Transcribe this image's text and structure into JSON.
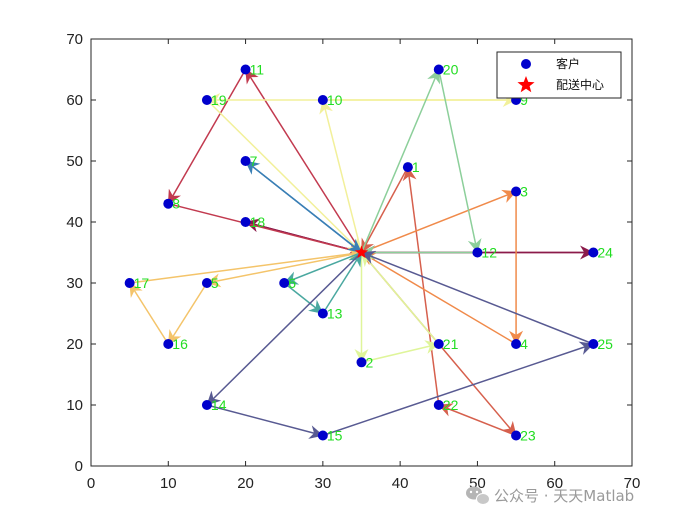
{
  "chart_data": {
    "type": "scatter",
    "title": "",
    "xlabel": "",
    "ylabel": "",
    "xlim": [
      0,
      70
    ],
    "ylim": [
      0,
      70
    ],
    "xticks": [
      0,
      10,
      20,
      30,
      40,
      50,
      60,
      70
    ],
    "yticks": [
      0,
      10,
      20,
      30,
      40,
      50,
      60,
      70
    ],
    "grid": false,
    "legend_position": "top-right",
    "legend": [
      {
        "label": "客户",
        "marker": "circle",
        "color": "#0000cc"
      },
      {
        "label": "配送中心",
        "marker": "star",
        "color": "#ff0000"
      }
    ],
    "depot": {
      "x": 35,
      "y": 35
    },
    "customers": [
      {
        "id": "1",
        "x": 41,
        "y": 49
      },
      {
        "id": "2",
        "x": 35,
        "y": 17
      },
      {
        "id": "3",
        "x": 55,
        "y": 45
      },
      {
        "id": "4",
        "x": 55,
        "y": 20
      },
      {
        "id": "5",
        "x": 15,
        "y": 30
      },
      {
        "id": "6",
        "x": 25,
        "y": 30
      },
      {
        "id": "7",
        "x": 20,
        "y": 50
      },
      {
        "id": "8",
        "x": 10,
        "y": 43
      },
      {
        "id": "9",
        "x": 55,
        "y": 60
      },
      {
        "id": "10",
        "x": 30,
        "y": 60
      },
      {
        "id": "11",
        "x": 20,
        "y": 65
      },
      {
        "id": "12",
        "x": 50,
        "y": 35
      },
      {
        "id": "13",
        "x": 30,
        "y": 25
      },
      {
        "id": "14",
        "x": 15,
        "y": 10
      },
      {
        "id": "15",
        "x": 30,
        "y": 5
      },
      {
        "id": "16",
        "x": 10,
        "y": 20
      },
      {
        "id": "17",
        "x": 5,
        "y": 30
      },
      {
        "id": "18",
        "x": 20,
        "y": 40
      },
      {
        "id": "19",
        "x": 15,
        "y": 60
      },
      {
        "id": "20",
        "x": 45,
        "y": 65
      },
      {
        "id": "21",
        "x": 45,
        "y": 20
      },
      {
        "id": "22",
        "x": 45,
        "y": 10
      },
      {
        "id": "23",
        "x": 55,
        "y": 5
      },
      {
        "id": "24",
        "x": 65,
        "y": 35
      },
      {
        "id": "25",
        "x": 65,
        "y": 20
      }
    ],
    "routes": [
      {
        "color": "#8b1a4a",
        "path": [
          [
            35,
            35
          ],
          [
            20,
            40
          ],
          [
            35,
            35
          ]
        ]
      },
      {
        "color": "#8b1a4a",
        "path": [
          [
            35,
            35
          ],
          [
            65,
            35
          ],
          [
            35,
            35
          ]
        ]
      },
      {
        "color": "#c23a4f",
        "path": [
          [
            35,
            35
          ],
          [
            20,
            65
          ],
          [
            10,
            43
          ],
          [
            35,
            35
          ]
        ]
      },
      {
        "color": "#d6604d",
        "path": [
          [
            35,
            35
          ],
          [
            55,
            5
          ],
          [
            45,
            10
          ],
          [
            41,
            49
          ],
          [
            35,
            35
          ]
        ]
      },
      {
        "color": "#f08a4a",
        "path": [
          [
            35,
            35
          ],
          [
            55,
            45
          ],
          [
            55,
            20
          ],
          [
            35,
            35
          ]
        ]
      },
      {
        "color": "#f4c46a",
        "path": [
          [
            35,
            35
          ],
          [
            15,
            30
          ],
          [
            10,
            20
          ],
          [
            5,
            30
          ],
          [
            35,
            35
          ]
        ]
      },
      {
        "color": "#f2f09a",
        "path": [
          [
            35,
            35
          ],
          [
            30,
            60
          ],
          [
            55,
            60
          ],
          [
            15,
            60
          ],
          [
            35,
            35
          ]
        ]
      },
      {
        "color": "#dff59a",
        "path": [
          [
            35,
            35
          ],
          [
            35,
            17
          ],
          [
            45,
            20
          ],
          [
            35,
            35
          ]
        ]
      },
      {
        "color": "#8ccf9a",
        "path": [
          [
            35,
            35
          ],
          [
            45,
            65
          ],
          [
            50,
            35
          ],
          [
            35,
            35
          ]
        ]
      },
      {
        "color": "#4aa8a0",
        "path": [
          [
            35,
            35
          ],
          [
            25,
            30
          ],
          [
            30,
            25
          ],
          [
            35,
            35
          ]
        ]
      },
      {
        "color": "#3a7fb5",
        "path": [
          [
            35,
            35
          ],
          [
            20,
            50
          ],
          [
            35,
            35
          ]
        ]
      },
      {
        "color": "#585a92",
        "path": [
          [
            35,
            35
          ],
          [
            15,
            10
          ],
          [
            30,
            5
          ],
          [
            65,
            20
          ],
          [
            35,
            35
          ]
        ]
      }
    ]
  },
  "watermark": {
    "text": "公众号 · 天天Matlab",
    "icon": "wechat-icon"
  }
}
